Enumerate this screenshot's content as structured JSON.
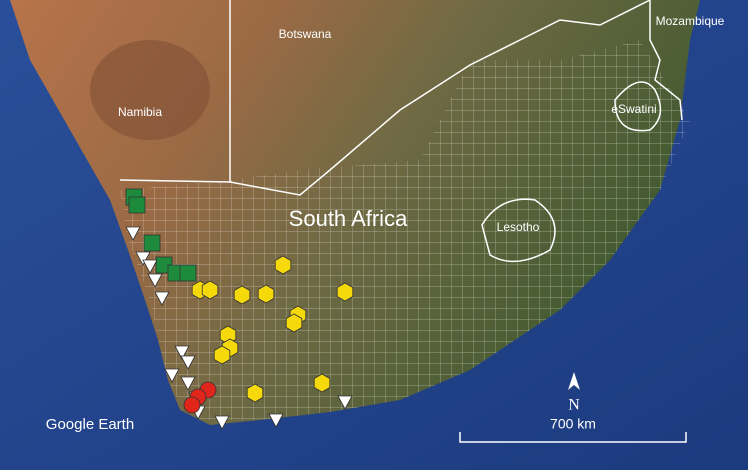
{
  "map": {
    "countries": [
      "Botswana",
      "Mozambique",
      "Namibia",
      "eSwatini",
      "Lesotho"
    ],
    "main_label": "South Africa",
    "attribution": "Google Earth",
    "north": "N",
    "scale": "700 km"
  }
}
